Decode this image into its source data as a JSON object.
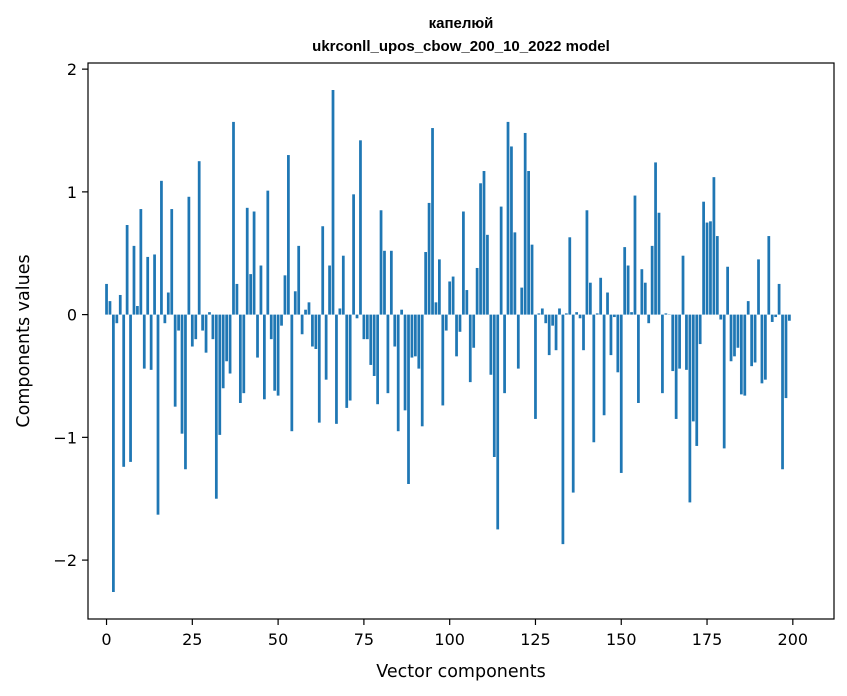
{
  "chart_data": {
    "type": "bar",
    "title": "капелюй",
    "subtitle": "ukrconll_upos_cbow_200_10_2022 model",
    "xlabel": "Vector components",
    "ylabel": "Components values",
    "xlim": [
      -5.4,
      212.0
    ],
    "ylim": [
      -2.48,
      2.05
    ],
    "xticks": [
      0,
      25,
      50,
      75,
      100,
      125,
      150,
      175,
      200
    ],
    "xtick_labels": [
      "0",
      "25",
      "50",
      "75",
      "100",
      "125",
      "150",
      "175",
      "200"
    ],
    "yticks": [
      -2,
      -1,
      0,
      1,
      2
    ],
    "ytick_labels": [
      "−2",
      "−1",
      "0",
      "1",
      "2"
    ],
    "bar_color": "#1f77b4",
    "grid": false,
    "x": [
      0,
      1,
      2,
      3,
      4,
      5,
      6,
      7,
      8,
      9,
      10,
      11,
      12,
      13,
      14,
      15,
      16,
      17,
      18,
      19,
      20,
      21,
      22,
      23,
      24,
      25,
      26,
      27,
      28,
      29,
      30,
      31,
      32,
      33,
      34,
      35,
      36,
      37,
      38,
      39,
      40,
      41,
      42,
      43,
      44,
      45,
      46,
      47,
      48,
      49,
      50,
      51,
      52,
      53,
      54,
      55,
      56,
      57,
      58,
      59,
      60,
      61,
      62,
      63,
      64,
      65,
      66,
      67,
      68,
      69,
      70,
      71,
      72,
      73,
      74,
      75,
      76,
      77,
      78,
      79,
      80,
      81,
      82,
      83,
      84,
      85,
      86,
      87,
      88,
      89,
      90,
      91,
      92,
      93,
      94,
      95,
      96,
      97,
      98,
      99,
      100,
      101,
      102,
      103,
      104,
      105,
      106,
      107,
      108,
      109,
      110,
      111,
      112,
      113,
      114,
      115,
      116,
      117,
      118,
      119,
      120,
      121,
      122,
      123,
      124,
      125,
      126,
      127,
      128,
      129,
      130,
      131,
      132,
      133,
      134,
      135,
      136,
      137,
      138,
      139,
      140,
      141,
      142,
      143,
      144,
      145,
      146,
      147,
      148,
      149,
      150,
      151,
      152,
      153,
      154,
      155,
      156,
      157,
      158,
      159,
      160,
      161,
      162,
      163,
      164,
      165,
      166,
      167,
      168,
      169,
      170,
      171,
      172,
      173,
      174,
      175,
      176,
      177,
      178,
      179,
      180,
      181,
      182,
      183,
      184,
      185,
      186,
      187,
      188,
      189,
      190,
      191,
      192,
      193,
      194,
      195,
      196,
      197,
      198,
      199
    ],
    "values": [
      0.25,
      0.11,
      -2.26,
      -0.07,
      0.16,
      -1.24,
      0.73,
      -1.2,
      0.56,
      0.07,
      0.86,
      -0.44,
      0.47,
      -0.45,
      0.49,
      -1.63,
      1.09,
      -0.07,
      0.18,
      0.86,
      -0.75,
      -0.13,
      -0.97,
      -1.26,
      0.96,
      -0.26,
      -0.2,
      1.25,
      -0.13,
      -0.31,
      0.02,
      -0.2,
      -1.5,
      -0.98,
      -0.6,
      -0.38,
      -0.48,
      1.57,
      0.25,
      -0.72,
      -0.64,
      0.87,
      0.33,
      0.84,
      -0.35,
      0.4,
      -0.69,
      1.01,
      -0.2,
      -0.62,
      -0.66,
      -0.09,
      0.32,
      1.3,
      -0.95,
      0.19,
      0.56,
      -0.16,
      0.04,
      0.1,
      -0.26,
      -0.28,
      -0.88,
      0.72,
      -0.53,
      0.4,
      1.83,
      -0.89,
      0.05,
      0.48,
      -0.76,
      -0.7,
      0.98,
      -0.03,
      1.42,
      -0.2,
      -0.2,
      -0.41,
      -0.5,
      -0.73,
      0.85,
      0.52,
      -0.64,
      0.52,
      -0.26,
      -0.95,
      0.04,
      -0.78,
      -1.38,
      -0.35,
      -0.34,
      -0.44,
      -0.91,
      0.51,
      0.91,
      1.52,
      0.1,
      0.45,
      -0.74,
      -0.13,
      0.27,
      0.31,
      -0.34,
      -0.14,
      0.84,
      0.2,
      -0.55,
      -0.27,
      0.38,
      1.07,
      1.17,
      0.65,
      -0.49,
      -1.16,
      -1.75,
      0.88,
      -0.64,
      1.57,
      1.37,
      0.67,
      -0.44,
      0.22,
      1.48,
      1.17,
      0.57,
      -0.85,
      0.01,
      0.05,
      -0.07,
      -0.33,
      -0.09,
      -0.29,
      0.05,
      -1.87,
      0.01,
      0.63,
      -1.45,
      0.02,
      -0.03,
      -0.29,
      0.85,
      0.26,
      -1.04,
      0.01,
      0.3,
      -0.82,
      0.18,
      -0.33,
      -0.02,
      -0.47,
      -1.29,
      0.55,
      0.4,
      0.02,
      0.97,
      -0.72,
      0.37,
      0.26,
      -0.07,
      0.56,
      1.24,
      0.83,
      -0.64,
      0.01,
      0.0,
      -0.46,
      -0.85,
      -0.44,
      0.48,
      -0.45,
      -1.53,
      -0.87,
      -1.07,
      -0.24,
      0.92,
      0.75,
      0.76,
      1.12,
      0.64,
      -0.04,
      -1.09,
      0.39,
      -0.38,
      -0.34,
      -0.27,
      -0.65,
      -0.66,
      0.11,
      -0.42,
      -0.39,
      0.45,
      -0.56,
      -0.53,
      0.64,
      -0.06,
      -0.02,
      0.25,
      -1.26,
      -0.68,
      -0.05
    ]
  }
}
